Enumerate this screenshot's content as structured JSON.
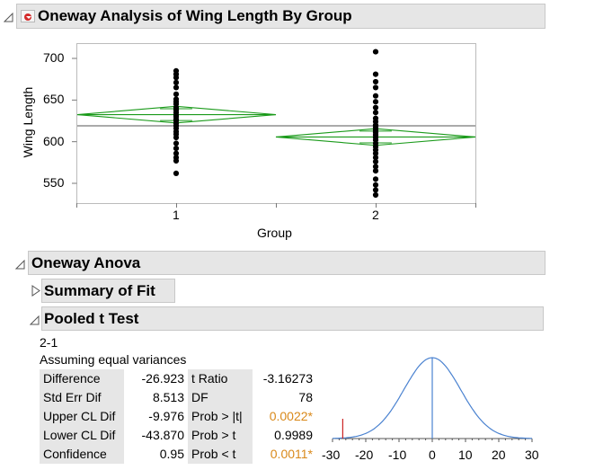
{
  "report": {
    "title": "Oneway Analysis of Wing Length By Group"
  },
  "plot": {
    "ylabel": "Wing Length",
    "xlabel": "Group",
    "ytick_labels": [
      "700",
      "650",
      "600",
      "550"
    ],
    "xtick_labels": [
      "1",
      "2"
    ]
  },
  "anova": {
    "title": "Oneway Anova",
    "summary_title": "Summary of Fit",
    "ttest_title": "Pooled t Test",
    "contrast": "2-1",
    "assumption": "Assuming equal variances",
    "rows": [
      {
        "label": "Difference",
        "value": "-26.923",
        "stat": "t Ratio",
        "stat_value": "-3.16273"
      },
      {
        "label": "Std Err Dif",
        "value": "8.513",
        "stat": "DF",
        "stat_value": "78"
      },
      {
        "label": "Upper CL Dif",
        "value": "-9.976",
        "stat": "Prob > |t|",
        "stat_value": "0.0022*"
      },
      {
        "label": "Lower CL Dif",
        "value": "-43.870",
        "stat": "Prob > t",
        "stat_value": "0.9989"
      },
      {
        "label": "Confidence",
        "value": "0.95",
        "stat": "Prob < t",
        "stat_value": "0.0011*"
      }
    ],
    "dist_tick_labels": [
      "-30",
      "-20",
      "-10",
      "0",
      "10",
      "20",
      "30"
    ]
  },
  "colors": {
    "diamond": "#1a9a1a",
    "curve": "#4a82d0",
    "tmark": "#cc2222",
    "significant": "#d9891a",
    "header_bg": "#e6e6e6"
  },
  "chart_data": {
    "type": "scatter",
    "xlabel": "Group",
    "ylabel": "Wing Length",
    "categories": [
      "1",
      "2"
    ],
    "ylim": [
      525,
      715
    ],
    "grand_mean": 619,
    "groups": [
      {
        "name": "1",
        "mean": 632.5,
        "ci": [
          622.5,
          642.5
        ],
        "points": [
          685,
          681,
          677,
          671,
          665,
          657,
          651,
          648,
          645,
          641,
          638,
          635,
          632,
          630,
          627,
          625,
          622,
          619,
          616,
          612,
          609,
          605,
          598,
          592,
          586,
          581,
          577,
          562
        ]
      },
      {
        "name": "2",
        "mean": 605.6,
        "ci": [
          595.6,
          615.6
        ],
        "points": [
          708,
          681,
          672,
          665,
          655,
          648,
          641,
          635,
          628,
          624,
          620,
          617,
          614,
          611,
          608,
          605,
          602,
          598,
          594,
          590,
          586,
          581,
          576,
          570,
          565,
          555,
          548,
          542,
          536
        ]
      }
    ]
  }
}
